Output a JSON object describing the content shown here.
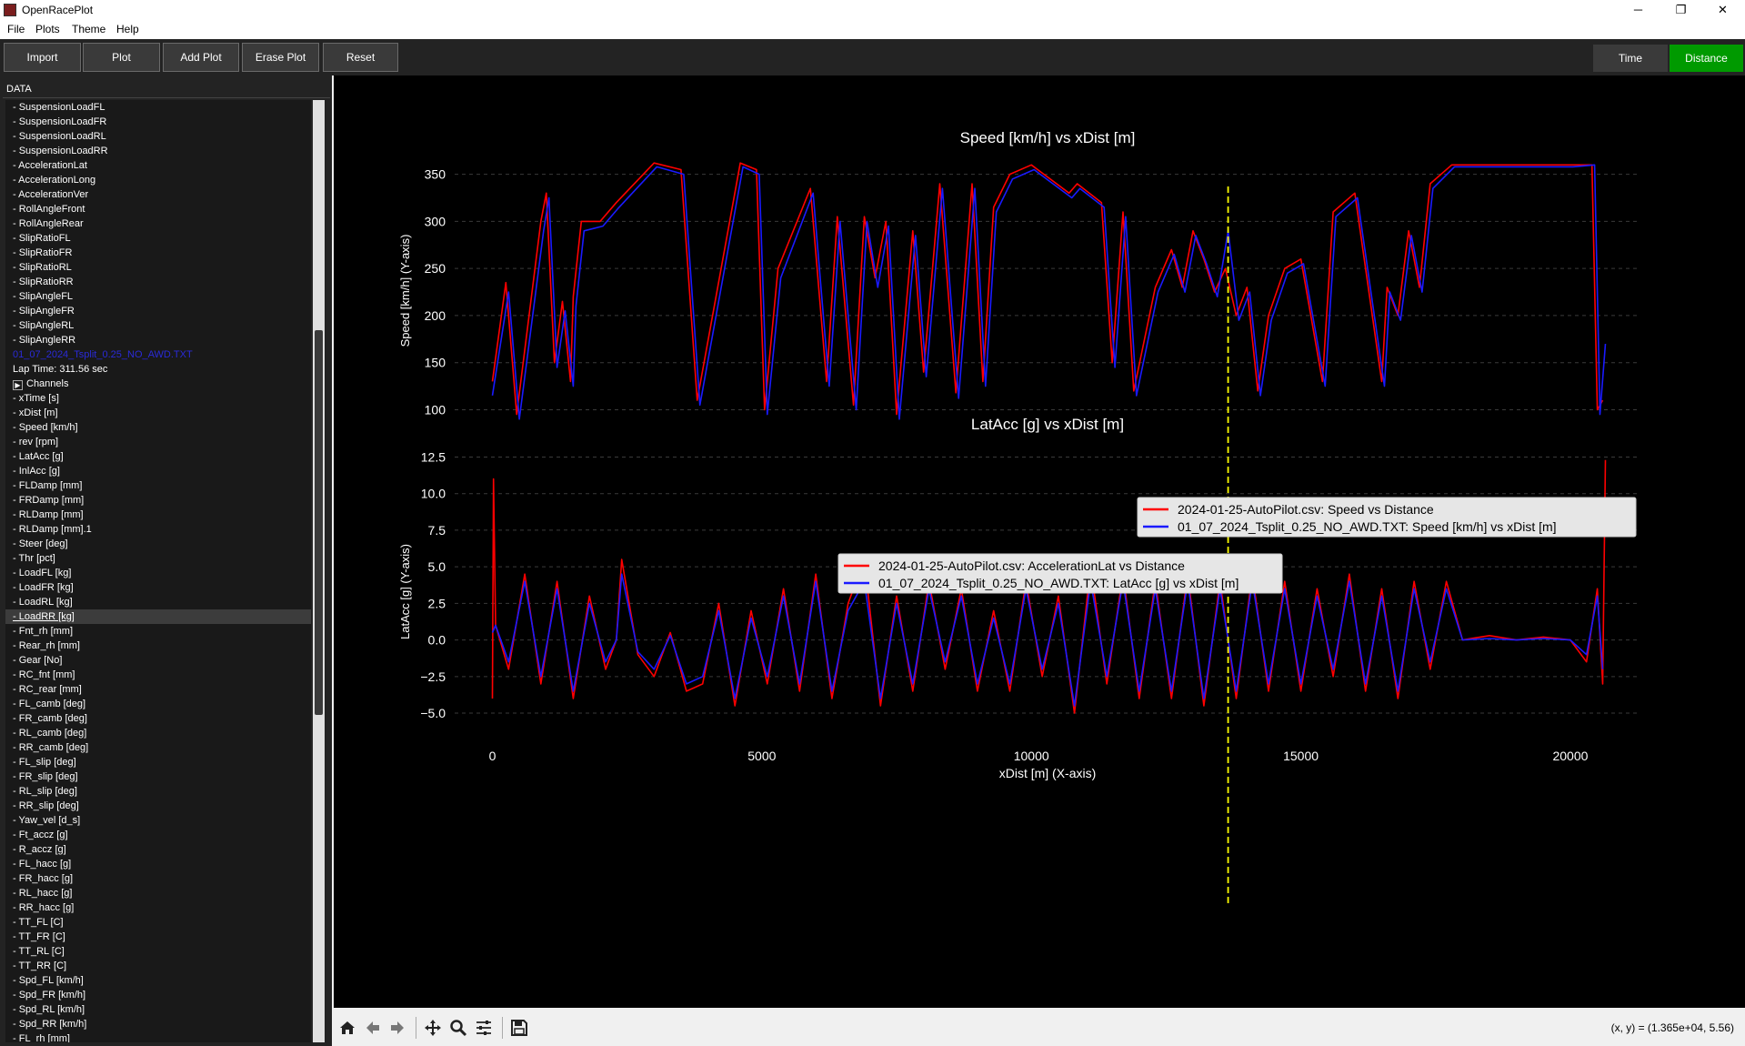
{
  "window": {
    "title": "OpenRacePlot",
    "minimize": "─",
    "maximize": "❐",
    "close": "✕"
  },
  "menu": [
    "File",
    "Plots",
    "Theme",
    "Help"
  ],
  "toolbar": {
    "import": "Import",
    "plot": "Plot",
    "add_plot": "Add Plot",
    "erase_plot": "Erase Plot",
    "reset": "Reset",
    "time": "Time",
    "distance": "Distance",
    "active_mode": "Distance",
    "active_color": "#009a00",
    "inactive_color": "#3a3a3a"
  },
  "sidebar": {
    "header": "DATA",
    "upper_channels": [
      "- SuspensionLoadFL",
      "- SuspensionLoadFR",
      "- SuspensionLoadRL",
      "- SuspensionLoadRR",
      "- AccelerationLat",
      "- AccelerationLong",
      "- AccelerationVer",
      "- RollAngleFront",
      "- RollAngleRear",
      "- SlipRatioFL",
      "- SlipRatioFR",
      "- SlipRatioRL",
      "- SlipRatioRR",
      "- SlipAngleFL",
      "- SlipAngleFR",
      "- SlipAngleRL",
      "- SlipAngleRR"
    ],
    "file_label": "01_07_2024_Tsplit_0.25_NO_AWD.TXT",
    "lap_time": "Lap Time: 311.56 sec",
    "channels_label": "Channels",
    "selected_channel": "- LoadRR [kg]",
    "lower_channels": [
      "- xTime [s]",
      "- xDist [m]",
      "- Speed [km/h]",
      "- rev [rpm]",
      "- LatAcc [g]",
      "- InlAcc [g]",
      "- FLDamp [mm]",
      "- FRDamp [mm]",
      "- RLDamp [mm]",
      "- RLDamp [mm].1",
      "- Steer [deg]",
      "- Thr [pct]",
      "- LoadFL [kg]",
      "- LoadFR [kg]",
      "- LoadRL [kg]",
      "- LoadRR [kg]",
      "- Fnt_rh [mm]",
      "- Rear_rh [mm]",
      "- Gear [No]",
      "- RC_fnt [mm]",
      "- RC_rear [mm]",
      "- FL_camb [deg]",
      "- FR_camb [deg]",
      "- RL_camb [deg]",
      "- RR_camb [deg]",
      "- FL_slip [deg]",
      "- FR_slip [deg]",
      "- RL_slip [deg]",
      "- RR_slip [deg]",
      "- Yaw_vel [d_s]",
      "- Ft_accz [g]",
      "- R_accz [g]",
      "- FL_hacc [g]",
      "- FR_hacc [g]",
      "- RL_hacc [g]",
      "- RR_hacc [g]",
      "- TT_FL [C]",
      "- TT_FR [C]",
      "- TT_RL [C]",
      "- TT_RR [C]",
      "- Spd_FL [km/h]",
      "- Spd_FR [km/h]",
      "- Spd_RL [km/h]",
      "- Spd_RR [km/h]",
      "- FL_rh [mm]"
    ]
  },
  "navbar": {
    "icons": [
      "home-icon",
      "back-icon",
      "forward-icon",
      "pan-icon",
      "zoom-icon",
      "configure-icon",
      "save-icon"
    ],
    "coords": "(x, y) = (1.365e+04, 5.56)"
  },
  "chart_data": [
    {
      "type": "line",
      "title": "Speed [km/h] vs xDist [m]",
      "xlabel": "",
      "ylabel": "Speed [km/h] (Y-axis)",
      "xlim": [
        -700,
        21300
      ],
      "ylim": [
        85,
        368
      ],
      "yticks": [
        100,
        150,
        200,
        250,
        300,
        350
      ],
      "ytick_labels": [
        "100",
        "150",
        "200",
        "250",
        "300",
        "350"
      ],
      "grid": "horizontal dashed",
      "legend_position": "lower-right",
      "cursor_x": 13650,
      "series": [
        {
          "name": "2024-01-25-AutoPilot.csv: Speed vs Distance",
          "color": "#ff0000",
          "x": [
            0,
            250,
            450,
            900,
            1000,
            1150,
            1300,
            1450,
            1500,
            1650,
            2000,
            2300,
            3000,
            3500,
            3800,
            4600,
            4900,
            5050,
            5300,
            5900,
            6200,
            6400,
            6700,
            6900,
            7100,
            7300,
            7500,
            7800,
            8000,
            8300,
            8600,
            8900,
            9100,
            9300,
            9600,
            10000,
            10700,
            10850,
            11300,
            11500,
            11700,
            11900,
            12300,
            12600,
            12800,
            13000,
            13200,
            13400,
            13600,
            13800,
            14000,
            14200,
            14400,
            14700,
            15000,
            15400,
            15600,
            16000,
            16500,
            16600,
            16800,
            17000,
            17200,
            17400,
            17800,
            18200,
            19000,
            20000,
            20400,
            20500,
            20600
          ],
          "y": [
            130,
            235,
            95,
            300,
            330,
            150,
            215,
            130,
            220,
            300,
            300,
            320,
            362,
            355,
            110,
            362,
            355,
            100,
            250,
            335,
            130,
            305,
            105,
            305,
            240,
            300,
            95,
            290,
            140,
            340,
            118,
            340,
            130,
            315,
            350,
            360,
            330,
            340,
            320,
            150,
            310,
            120,
            230,
            270,
            230,
            290,
            260,
            225,
            250,
            200,
            230,
            120,
            200,
            250,
            260,
            130,
            310,
            330,
            130,
            230,
            200,
            290,
            230,
            340,
            360,
            360,
            360,
            360,
            360,
            100,
            110
          ]
        },
        {
          "name": "01_07_2024_Tsplit_0.25_NO_AWD.TXT: Speed [km/h] vs xDist [m]",
          "color": "#1a1aff",
          "x": [
            0,
            300,
            500,
            950,
            1050,
            1200,
            1350,
            1500,
            1550,
            1700,
            2050,
            2350,
            3050,
            3550,
            3850,
            4650,
            4950,
            5100,
            5350,
            5950,
            6250,
            6450,
            6750,
            6950,
            7150,
            7350,
            7550,
            7850,
            8050,
            8350,
            8650,
            8950,
            9150,
            9350,
            9650,
            10050,
            10750,
            10900,
            11350,
            11550,
            11750,
            11950,
            12350,
            12650,
            12850,
            13050,
            13250,
            13450,
            13650,
            13850,
            14050,
            14250,
            14450,
            14750,
            15050,
            15450,
            15650,
            16050,
            16550,
            16650,
            16850,
            17050,
            17250,
            17450,
            17850,
            18250,
            19050,
            20050,
            20450,
            20550,
            20650
          ],
          "y": [
            115,
            225,
            90,
            290,
            325,
            145,
            205,
            125,
            210,
            290,
            295,
            315,
            358,
            350,
            105,
            358,
            350,
            95,
            240,
            330,
            125,
            300,
            100,
            300,
            230,
            295,
            90,
            285,
            135,
            335,
            112,
            335,
            125,
            310,
            345,
            355,
            325,
            335,
            315,
            145,
            305,
            115,
            225,
            265,
            225,
            285,
            255,
            220,
            290,
            195,
            225,
            115,
            195,
            245,
            255,
            125,
            305,
            325,
            125,
            225,
            195,
            285,
            225,
            335,
            358,
            358,
            358,
            358,
            360,
            95,
            170
          ]
        }
      ]
    },
    {
      "type": "line",
      "title": "LatAcc [g] vs xDist [m]",
      "xlabel": "xDist [m] (X-axis)",
      "ylabel": "LatAcc [g] (Y-axis)",
      "xlim": [
        -700,
        21300
      ],
      "ylim": [
        -6.8,
        13.4
      ],
      "xticks": [
        0,
        5000,
        10000,
        15000,
        20000
      ],
      "xtick_labels": [
        "0",
        "5000",
        "10000",
        "15000",
        "20000"
      ],
      "yticks": [
        -5.0,
        -2.5,
        0.0,
        2.5,
        5.0,
        7.5,
        10.0,
        12.5
      ],
      "ytick_labels": [
        "−5.0",
        "−2.5",
        "0.0",
        "2.5",
        "5.0",
        "7.5",
        "10.0",
        "12.5"
      ],
      "grid": "horizontal dashed",
      "legend_position": "upper-center",
      "cursor_x": 13650,
      "series": [
        {
          "name": "2024-01-25-AutoPilot.csv: AccelerationLat vs Distance",
          "color": "#ff0000",
          "x": [
            0,
            20,
            60,
            300,
            600,
            900,
            1200,
            1500,
            1800,
            2100,
            2300,
            2400,
            2700,
            3000,
            3300,
            3600,
            3900,
            4200,
            4500,
            4800,
            5100,
            5400,
            5700,
            6000,
            6300,
            6600,
            6900,
            7200,
            7500,
            7800,
            8100,
            8400,
            8700,
            9000,
            9300,
            9600,
            9900,
            10200,
            10500,
            10800,
            11100,
            11400,
            11700,
            12000,
            12300,
            12600,
            12900,
            13200,
            13500,
            13800,
            14100,
            14400,
            14700,
            15000,
            15300,
            15600,
            15900,
            16200,
            16500,
            16800,
            17100,
            17400,
            17700,
            18000,
            18500,
            19000,
            19500,
            20000,
            20300,
            20500,
            20600,
            20650
          ],
          "y": [
            -4.0,
            11.0,
            1.0,
            -2.0,
            4.5,
            -3.0,
            4.0,
            -4.0,
            3.0,
            -2.0,
            0.0,
            5.5,
            -1.0,
            -2.5,
            0.5,
            -3.5,
            -3.0,
            2.5,
            -4.5,
            2.0,
            -3.0,
            3.5,
            -3.5,
            4.5,
            -4.0,
            2.5,
            5.5,
            -4.5,
            3.0,
            -3.5,
            4.0,
            -2.0,
            3.5,
            -3.5,
            2.0,
            -3.5,
            4.0,
            -2.5,
            3.0,
            -5.0,
            5.0,
            -3.0,
            4.5,
            -4.0,
            4.0,
            -4.0,
            4.5,
            -4.5,
            4.0,
            -4.0,
            4.5,
            -3.5,
            4.0,
            -3.5,
            3.5,
            -2.5,
            4.5,
            -3.5,
            3.5,
            -4.0,
            4.0,
            -2.0,
            4.0,
            0.0,
            0.3,
            0.0,
            0.2,
            0.0,
            -1.5,
            3.5,
            -3.0,
            12.3
          ]
        },
        {
          "name": "01_07_2024_Tsplit_0.25_NO_AWD.TXT: LatAcc [g] vs xDist [m]",
          "color": "#1a1aff",
          "x": [
            0,
            60,
            300,
            600,
            900,
            1200,
            1500,
            1800,
            2100,
            2300,
            2400,
            2700,
            3000,
            3300,
            3600,
            3900,
            4200,
            4500,
            4800,
            5100,
            5400,
            5700,
            6000,
            6300,
            6600,
            6900,
            7200,
            7500,
            7800,
            8100,
            8400,
            8700,
            9000,
            9300,
            9600,
            9900,
            10200,
            10500,
            10800,
            11100,
            11400,
            11700,
            12000,
            12300,
            12600,
            12900,
            13200,
            13500,
            13800,
            14100,
            14400,
            14700,
            15000,
            15300,
            15600,
            15900,
            16200,
            16500,
            16800,
            17100,
            17400,
            17700,
            18000,
            18500,
            19000,
            19500,
            20000,
            20300,
            20500,
            20600
          ],
          "y": [
            0.5,
            1.0,
            -1.5,
            4.0,
            -2.5,
            3.5,
            -3.5,
            2.5,
            -1.5,
            0.0,
            4.5,
            -0.8,
            -2.0,
            0.3,
            -3.0,
            -2.5,
            2.0,
            -4.0,
            1.5,
            -2.5,
            3.0,
            -3.0,
            4.0,
            -3.5,
            2.0,
            4.0,
            -4.0,
            2.5,
            -3.0,
            3.5,
            -1.5,
            3.0,
            -3.0,
            1.5,
            -3.0,
            3.5,
            -2.0,
            2.5,
            -4.5,
            4.0,
            -2.5,
            4.0,
            -3.5,
            3.5,
            -3.5,
            4.0,
            -4.0,
            3.5,
            -3.5,
            4.0,
            -3.0,
            3.5,
            -3.0,
            3.0,
            -2.0,
            4.0,
            -3.0,
            3.0,
            -3.5,
            3.5,
            -1.5,
            3.5,
            0.0,
            0.1,
            0.0,
            0.1,
            0.0,
            -1.0,
            3.0,
            -2.0
          ]
        }
      ]
    }
  ]
}
